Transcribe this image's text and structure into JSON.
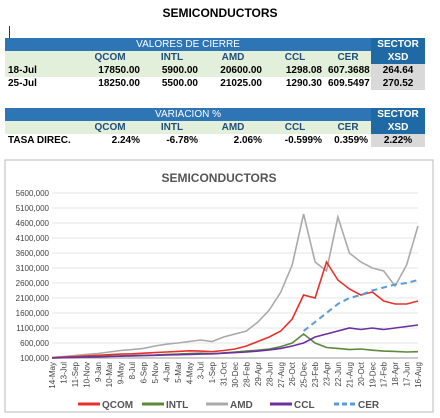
{
  "title": "SEMICONDUCTORS",
  "table1": {
    "header": "VALORES DE CIERRE",
    "sector": "SECTOR",
    "columns": [
      "",
      "QCOM",
      "INTL",
      "AMD",
      "CCL",
      "CER",
      "XSD"
    ],
    "rows": [
      [
        "18-Jul",
        "17850.00",
        "5900.00",
        "20600.00",
        "1298.08",
        "607.3688",
        "264.64"
      ],
      [
        "25-Jul",
        "18250.00",
        "5500.00",
        "21025.00",
        "1290.30",
        "609.5497",
        "270.52"
      ]
    ]
  },
  "table2": {
    "header": "VARIACION %",
    "sector": "SECTOR",
    "columns": [
      "",
      "QCOM",
      "INTL",
      "AMD",
      "CCL",
      "CER",
      "XSD"
    ],
    "rows": [
      [
        "TASA DIREC.",
        "2.24%",
        "-6.78%",
        "2.06%",
        "-0.599%",
        "0.359%",
        "2.22%"
      ]
    ]
  },
  "chart_data": {
    "type": "line",
    "title": "SEMICONDUCTORS",
    "categories": [
      "14-May",
      "13-Jul",
      "11-Sep",
      "10-Nov",
      "9-Jan",
      "10-Mar",
      "9-May",
      "8-Jul",
      "6-Sep",
      "5-Nov",
      "4-Jan",
      "5-Mar",
      "4-May",
      "3-Jul",
      "1-Sep",
      "31-Oct",
      "30-Dec",
      "28-Feb",
      "29-Apr",
      "28-Jun",
      "27-Aug",
      "26-Oct",
      "25-Dec",
      "23-Feb",
      "23-Apr",
      "22-Jun",
      "21-Aug",
      "20-Oct",
      "19-Dec",
      "17-Feb",
      "18-Apr",
      "17-Jun",
      "16-Aug"
    ],
    "ylim": [
      100000,
      5600000
    ],
    "yticks": [
      {
        "value": 100000,
        "label": "100,000"
      },
      {
        "value": 600000,
        "label": "600,000"
      },
      {
        "value": 1100000,
        "label": "1100,000"
      },
      {
        "value": 1600000,
        "label": "1600,000"
      },
      {
        "value": 2100000,
        "label": "2100,000"
      },
      {
        "value": 2600000,
        "label": "2600,000"
      },
      {
        "value": 3100000,
        "label": "3100,000"
      },
      {
        "value": 3600000,
        "label": "3600,000"
      },
      {
        "value": 4100000,
        "label": "4100,000"
      },
      {
        "value": 4600000,
        "label": "4600,000"
      },
      {
        "value": 5100000,
        "label": "5100,000"
      },
      {
        "value": 5600000,
        "label": "5600,000"
      }
    ],
    "series": [
      {
        "name": "QCOM",
        "color": "#e8312b",
        "values": [
          110000,
          130000,
          150000,
          170000,
          190000,
          210000,
          230000,
          240000,
          260000,
          280000,
          300000,
          320000,
          340000,
          330000,
          310000,
          350000,
          400000,
          500000,
          650000,
          800000,
          1000000,
          1400000,
          2200000,
          2100000,
          3300000,
          2700000,
          2400000,
          2200000,
          2300000,
          2000000,
          1900000,
          1900000,
          2000000
        ]
      },
      {
        "name": "INTL",
        "color": "#5a8a3a",
        "values": [
          100000,
          110000,
          120000,
          130000,
          140000,
          160000,
          170000,
          180000,
          190000,
          200000,
          220000,
          230000,
          250000,
          260000,
          240000,
          270000,
          300000,
          330000,
          360000,
          400000,
          480000,
          600000,
          900000,
          600000,
          450000,
          420000,
          380000,
          400000,
          360000,
          330000,
          320000,
          300000,
          310000
        ]
      },
      {
        "name": "AMD",
        "color": "#aaaaaa",
        "values": [
          120000,
          150000,
          180000,
          220000,
          250000,
          300000,
          350000,
          380000,
          420000,
          500000,
          560000,
          600000,
          650000,
          700000,
          650000,
          800000,
          900000,
          1000000,
          1300000,
          1700000,
          2300000,
          3200000,
          4900000,
          3300000,
          3000000,
          4800000,
          3600000,
          3300000,
          3100000,
          3000000,
          2500000,
          3200000,
          4500000
        ]
      },
      {
        "name": "CCL",
        "color": "#6b2fa0",
        "values": [
          100000,
          110000,
          120000,
          130000,
          140000,
          150000,
          160000,
          170000,
          180000,
          190000,
          200000,
          210000,
          220000,
          230000,
          240000,
          260000,
          280000,
          300000,
          330000,
          370000,
          420000,
          500000,
          600000,
          800000,
          900000,
          1000000,
          1100000,
          1050000,
          1100000,
          1050000,
          1100000,
          1150000,
          1200000
        ]
      },
      {
        "name": "CER",
        "color": "#5b9bd5",
        "dashed": true,
        "values": [
          null,
          null,
          null,
          null,
          null,
          null,
          null,
          null,
          null,
          null,
          null,
          null,
          null,
          null,
          null,
          null,
          null,
          null,
          null,
          null,
          null,
          null,
          1000000,
          1300000,
          1600000,
          1900000,
          2100000,
          2200000,
          2350000,
          2450000,
          2550000,
          2600000,
          2700000
        ]
      }
    ]
  }
}
